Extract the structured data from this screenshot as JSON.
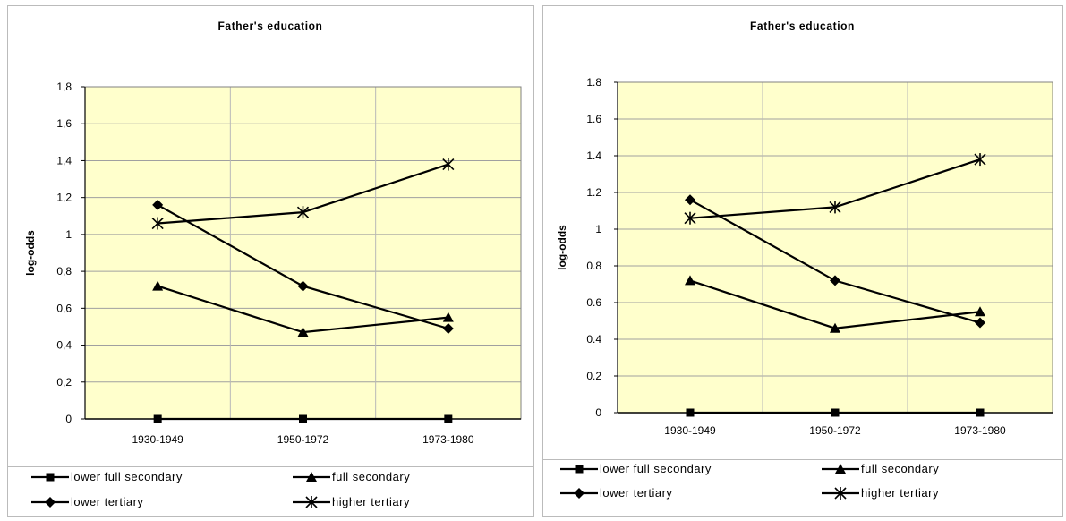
{
  "chart_data": [
    {
      "type": "line",
      "title": "Father's education",
      "xlabel": "",
      "ylabel": "log-odds",
      "categories": [
        "1930-1949",
        "1950-1972",
        "1973-1980"
      ],
      "ylim": [
        0,
        1.8
      ],
      "yticks": [
        "0",
        "0,2",
        "0,4",
        "0,6",
        "0,8",
        "1",
        "1,2",
        "1,4",
        "1,6",
        "1,8"
      ],
      "grid": true,
      "legend_position": "bottom",
      "plot_background": "#FFFFCC",
      "series": [
        {
          "name": "lower full secondary",
          "marker": "square",
          "values": [
            0,
            0,
            0
          ]
        },
        {
          "name": "full secondary",
          "marker": "triangle",
          "values": [
            0.72,
            0.47,
            0.55
          ]
        },
        {
          "name": "lower tertiary",
          "marker": "diamond",
          "values": [
            1.16,
            0.72,
            0.49
          ]
        },
        {
          "name": "higher tertiary",
          "marker": "star",
          "values": [
            1.06,
            1.12,
            1.38
          ]
        }
      ]
    },
    {
      "type": "line",
      "title": "Father's education",
      "xlabel": "",
      "ylabel": "log-odds",
      "categories": [
        "1930-1949",
        "1950-1972",
        "1973-1980"
      ],
      "ylim": [
        0,
        1.8
      ],
      "yticks": [
        "0",
        "0.2",
        "0.4",
        "0.6",
        "0.8",
        "1",
        "1.2",
        "1.4",
        "1.6",
        "1.8"
      ],
      "grid": true,
      "legend_position": "bottom",
      "plot_background": "#FFFFCC",
      "series": [
        {
          "name": "lower full secondary",
          "marker": "square",
          "values": [
            0,
            0,
            0
          ]
        },
        {
          "name": "full secondary",
          "marker": "triangle",
          "values": [
            0.72,
            0.46,
            0.55
          ]
        },
        {
          "name": "lower tertiary",
          "marker": "diamond",
          "values": [
            1.16,
            0.72,
            0.49
          ]
        },
        {
          "name": "higher tertiary",
          "marker": "star",
          "values": [
            1.06,
            1.12,
            1.38
          ]
        }
      ]
    }
  ]
}
